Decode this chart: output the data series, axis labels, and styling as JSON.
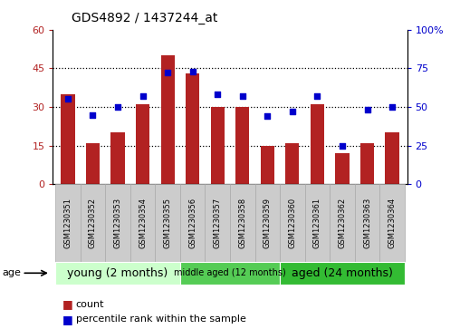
{
  "title": "GDS4892 / 1437244_at",
  "samples": [
    "GSM1230351",
    "GSM1230352",
    "GSM1230353",
    "GSM1230354",
    "GSM1230355",
    "GSM1230356",
    "GSM1230357",
    "GSM1230358",
    "GSM1230359",
    "GSM1230360",
    "GSM1230361",
    "GSM1230362",
    "GSM1230363",
    "GSM1230364"
  ],
  "counts": [
    35,
    16,
    20,
    31,
    50,
    43,
    30,
    30,
    15,
    16,
    31,
    12,
    16,
    20
  ],
  "percentiles": [
    55,
    45,
    50,
    57,
    72,
    73,
    58,
    57,
    44,
    47,
    57,
    25,
    48,
    50
  ],
  "ylim_left": [
    0,
    60
  ],
  "ylim_right": [
    0,
    100
  ],
  "yticks_left": [
    0,
    15,
    30,
    45,
    60
  ],
  "yticks_right": [
    0,
    25,
    50,
    75,
    100
  ],
  "bar_color": "#b22222",
  "dot_color": "#0000cc",
  "age_groups": [
    {
      "label": "young (2 months)",
      "start": 0,
      "end": 5,
      "color": "#ccffcc",
      "fontsize": 9
    },
    {
      "label": "middle aged (12 months)",
      "start": 5,
      "end": 9,
      "color": "#55cc55",
      "fontsize": 7
    },
    {
      "label": "aged (24 months)",
      "start": 9,
      "end": 14,
      "color": "#33bb33",
      "fontsize": 9
    }
  ],
  "label_bg_color": "#cccccc",
  "label_edge_color": "#aaaaaa"
}
